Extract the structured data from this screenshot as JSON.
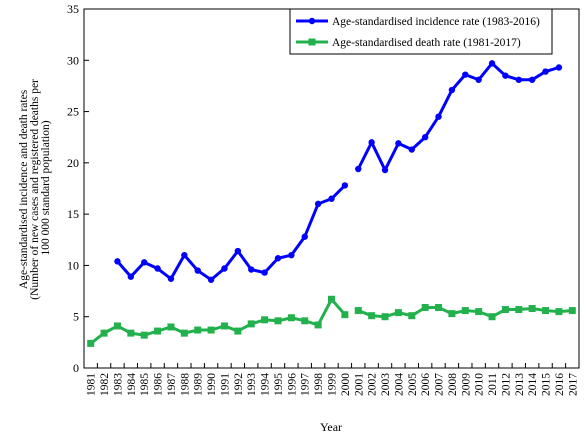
{
  "chart_data": {
    "type": "line",
    "xlabel": "Year",
    "ylabel": [
      "Age-standardised incidence and death rates",
      "(Number of new cases and registered deaths per",
      "100 000 standard population)"
    ],
    "ylim": [
      0,
      35
    ],
    "yticks": [
      0,
      5,
      10,
      15,
      20,
      25,
      30,
      35
    ],
    "xlim": [
      1981,
      2017
    ],
    "grid": false,
    "legend_position": "top-right",
    "series": [
      {
        "name": "Age-standardised incidence rate (1983-2016)",
        "color": "#0000ff",
        "marker": "circle",
        "points": [
          [
            1983,
            10.4
          ],
          [
            1984,
            8.9
          ],
          [
            1985,
            10.3
          ],
          [
            1986,
            9.7
          ],
          [
            1987,
            8.7
          ],
          [
            1988,
            11.0
          ],
          [
            1989,
            9.5
          ],
          [
            1990,
            8.6
          ],
          [
            1991,
            9.7
          ],
          [
            1992,
            11.4
          ],
          [
            1993,
            9.6
          ],
          [
            1994,
            9.3
          ],
          [
            1995,
            10.7
          ],
          [
            1996,
            11.0
          ],
          [
            1997,
            12.8
          ],
          [
            1998,
            16.0
          ],
          [
            1999,
            16.5
          ],
          [
            2000,
            17.8
          ],
          [
            2001,
            null
          ],
          [
            2001,
            19.4
          ],
          [
            2002,
            22.0
          ],
          [
            2003,
            19.3
          ],
          [
            2004,
            21.9
          ],
          [
            2005,
            21.3
          ],
          [
            2006,
            22.5
          ],
          [
            2007,
            24.5
          ],
          [
            2008,
            27.1
          ],
          [
            2009,
            28.6
          ],
          [
            2010,
            28.1
          ],
          [
            2011,
            29.7
          ],
          [
            2012,
            28.5
          ],
          [
            2013,
            28.1
          ],
          [
            2014,
            28.1
          ],
          [
            2015,
            28.9
          ],
          [
            2016,
            29.3
          ]
        ]
      },
      {
        "name": "Age-standardised death rate (1981-2017)",
        "color": "#22b14c",
        "marker": "square",
        "points": [
          [
            1981,
            2.4
          ],
          [
            1982,
            3.4
          ],
          [
            1983,
            4.1
          ],
          [
            1984,
            3.4
          ],
          [
            1985,
            3.2
          ],
          [
            1986,
            3.6
          ],
          [
            1987,
            4.0
          ],
          [
            1988,
            3.4
          ],
          [
            1989,
            3.7
          ],
          [
            1990,
            3.7
          ],
          [
            1991,
            4.1
          ],
          [
            1992,
            3.6
          ],
          [
            1993,
            4.3
          ],
          [
            1994,
            4.7
          ],
          [
            1995,
            4.6
          ],
          [
            1996,
            4.9
          ],
          [
            1997,
            4.6
          ],
          [
            1998,
            4.2
          ],
          [
            1999,
            6.7
          ],
          [
            2000,
            5.2
          ],
          [
            2001,
            null
          ],
          [
            2001,
            5.6
          ],
          [
            2002,
            5.1
          ],
          [
            2003,
            5.0
          ],
          [
            2004,
            5.4
          ],
          [
            2005,
            5.1
          ],
          [
            2006,
            5.9
          ],
          [
            2007,
            5.9
          ],
          [
            2008,
            5.3
          ],
          [
            2009,
            5.6
          ],
          [
            2010,
            5.5
          ],
          [
            2011,
            5.0
          ],
          [
            2012,
            5.7
          ],
          [
            2013,
            5.7
          ],
          [
            2014,
            5.8
          ],
          [
            2015,
            5.6
          ],
          [
            2016,
            5.5
          ],
          [
            2017,
            5.6
          ]
        ]
      }
    ]
  }
}
